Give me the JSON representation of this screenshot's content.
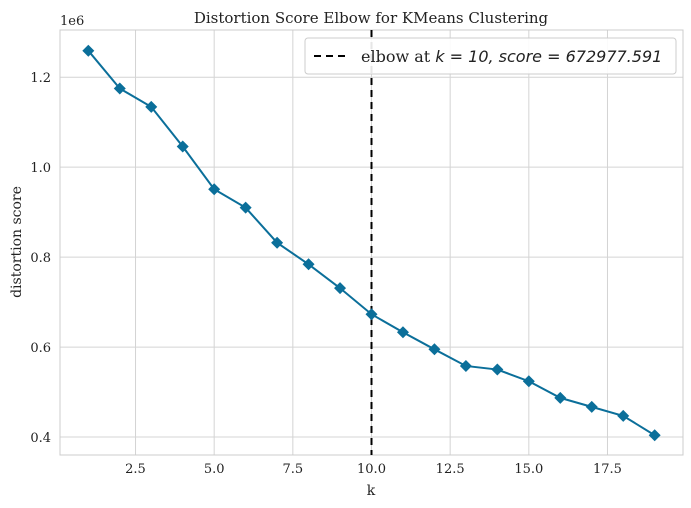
{
  "chart_data": {
    "type": "line",
    "title": "Distortion Score Elbow for KMeans Clustering",
    "xlabel": "k",
    "ylabel": "distortion score",
    "y_offset_label": "1e6",
    "xlim": [
      0.1,
      19.9
    ],
    "ylim": [
      0.36,
      1.305
    ],
    "xticks": [
      2.5,
      5.0,
      7.5,
      10.0,
      12.5,
      15.0,
      17.5
    ],
    "xtick_labels": [
      "2.5",
      "5.0",
      "7.5",
      "10.0",
      "12.5",
      "15.0",
      "17.5"
    ],
    "yticks": [
      0.4,
      0.6,
      0.8,
      1.0,
      1.2
    ],
    "ytick_labels": [
      "0.4",
      "0.6",
      "0.8",
      "1.0",
      "1.2"
    ],
    "grid": true,
    "legend_position": "top-right",
    "series": [
      {
        "x": [
          1,
          2,
          3,
          4,
          5,
          6,
          7,
          8,
          9,
          10,
          11,
          12,
          13,
          14,
          15,
          16,
          17,
          18,
          19
        ],
        "values": [
          1.259,
          1.175,
          1.134,
          1.046,
          0.951,
          0.91,
          0.832,
          0.784,
          0.731,
          0.673,
          0.633,
          0.595,
          0.558,
          0.55,
          0.524,
          0.487,
          0.467,
          0.447,
          0.404
        ],
        "color": "#0b6f9a"
      }
    ],
    "elbow": {
      "k": 10,
      "legend_text_prefix": "elbow at ",
      "legend_math": "k = 10, score = 672977.591",
      "color": "#000000"
    }
  }
}
